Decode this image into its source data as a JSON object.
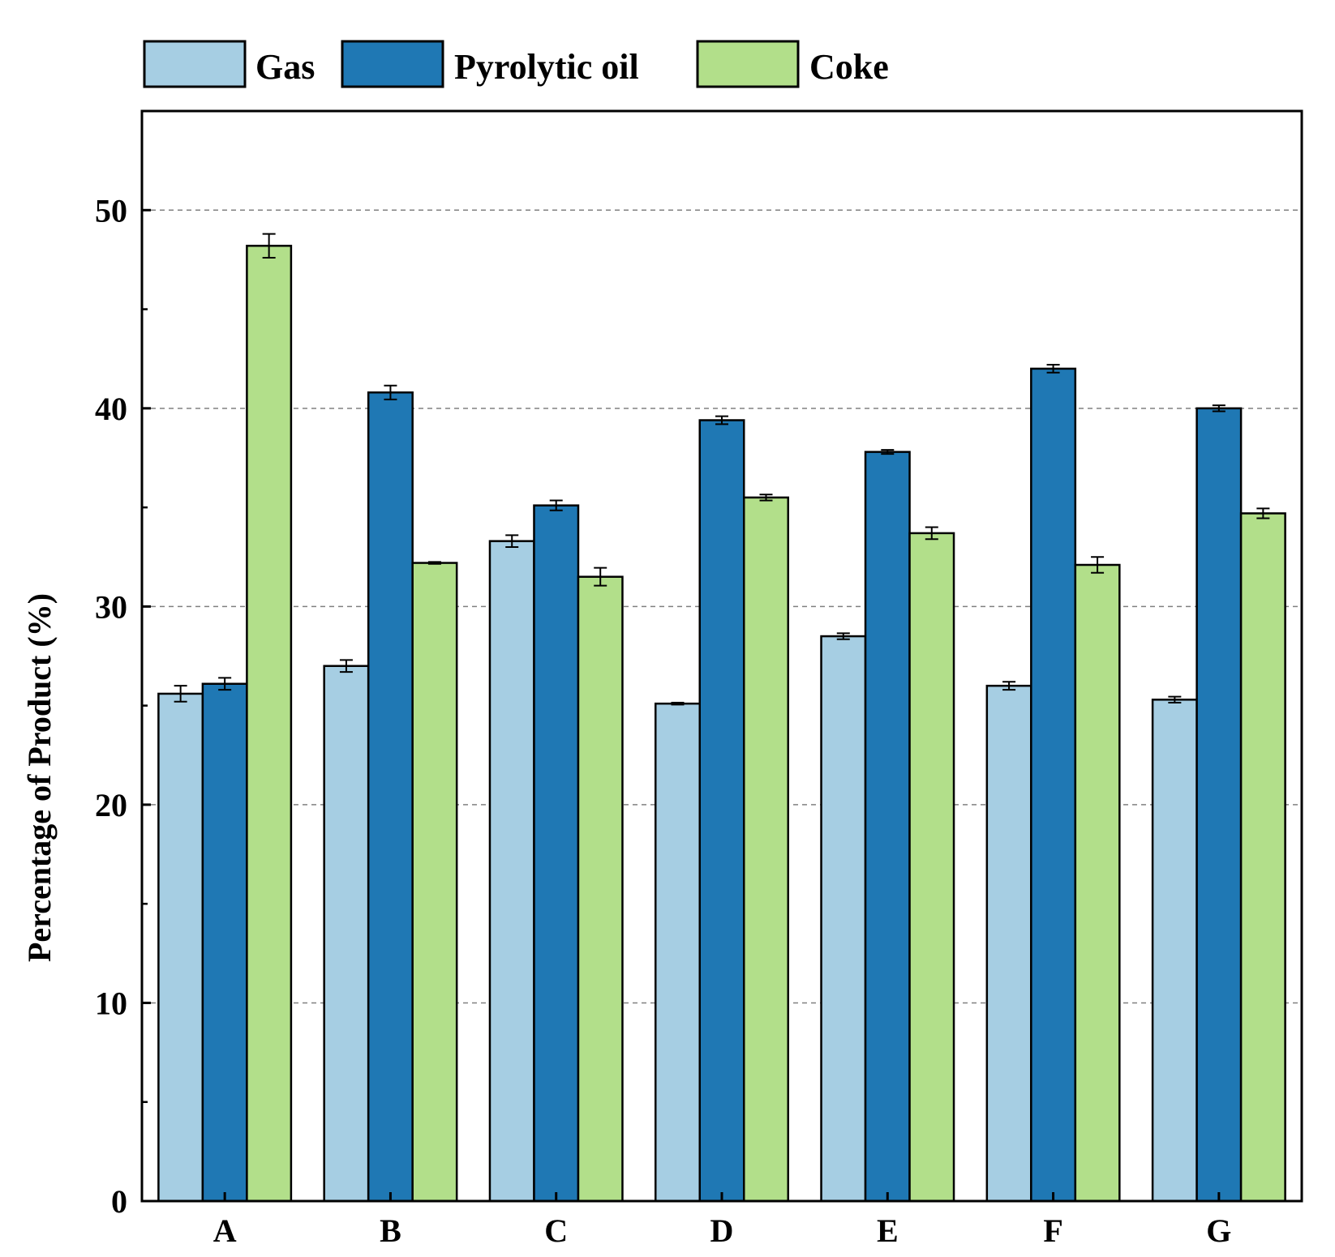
{
  "chart_data": {
    "type": "bar",
    "title": "",
    "xlabel": "",
    "ylabel": "Percentage of Product  (%)",
    "ylim": [
      0,
      55
    ],
    "yticks": [
      0,
      10,
      20,
      30,
      40,
      50
    ],
    "ytick_labels": [
      "0",
      "10",
      "20",
      "30",
      "40",
      "50"
    ],
    "grid": "dashed at labeled y ticks",
    "legend_position": "top, above plot",
    "categories": [
      "A",
      "B",
      "C",
      "D",
      "E",
      "F",
      "G"
    ],
    "series": [
      {
        "name": "Gas",
        "color": "#a6cee3",
        "values": [
          25.6,
          27.0,
          33.3,
          25.1,
          28.5,
          26.0,
          25.3
        ],
        "errors": [
          0.4,
          0.3,
          0.3,
          0.05,
          0.15,
          0.2,
          0.15
        ]
      },
      {
        "name": "Pyrolytic oil",
        "color": "#1f78b4",
        "values": [
          26.1,
          40.8,
          35.1,
          39.4,
          37.8,
          42.0,
          40.0
        ],
        "errors": [
          0.3,
          0.35,
          0.25,
          0.2,
          0.1,
          0.2,
          0.15
        ]
      },
      {
        "name": "Coke",
        "color": "#b2df8a",
        "values": [
          48.2,
          32.2,
          31.5,
          35.5,
          33.7,
          32.1,
          34.7
        ],
        "errors": [
          0.6,
          0.05,
          0.45,
          0.15,
          0.3,
          0.4,
          0.25
        ]
      }
    ]
  }
}
